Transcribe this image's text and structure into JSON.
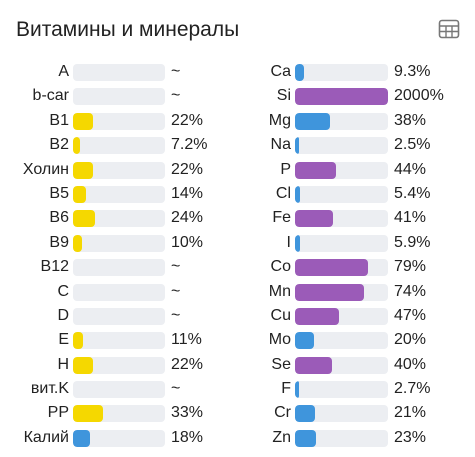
{
  "header": {
    "title": "Витамины и минералы",
    "table_icon": "table-grid-icon"
  },
  "colors": {
    "vitamin": "#f5d800",
    "mineral_low": "#3f95dc",
    "mineral_high": "#9b5bb8",
    "track": "#eceef2"
  },
  "vitamins": [
    {
      "label": "A",
      "value": "~",
      "percent": 0
    },
    {
      "label": "b-car",
      "value": "~",
      "percent": 0
    },
    {
      "label": "B1",
      "value": "22%",
      "percent": 22
    },
    {
      "label": "B2",
      "value": "7.2%",
      "percent": 7.2
    },
    {
      "label": "Холин",
      "value": "22%",
      "percent": 22
    },
    {
      "label": "B5",
      "value": "14%",
      "percent": 14
    },
    {
      "label": "B6",
      "value": "24%",
      "percent": 24
    },
    {
      "label": "B9",
      "value": "10%",
      "percent": 10
    },
    {
      "label": "B12",
      "value": "~",
      "percent": 0
    },
    {
      "label": "C",
      "value": "~",
      "percent": 0
    },
    {
      "label": "D",
      "value": "~",
      "percent": 0
    },
    {
      "label": "E",
      "value": "11%",
      "percent": 11
    },
    {
      "label": "H",
      "value": "22%",
      "percent": 22
    },
    {
      "label": "вит.K",
      "value": "~",
      "percent": 0
    },
    {
      "label": "PP",
      "value": "33%",
      "percent": 33
    },
    {
      "label": "Калий",
      "value": "18%",
      "percent": 18,
      "color": "#3f95dc"
    }
  ],
  "minerals": [
    {
      "label": "Ca",
      "value": "9.3%",
      "percent": 9.3
    },
    {
      "label": "Si",
      "value": "2000%",
      "percent": 2000
    },
    {
      "label": "Mg",
      "value": "38%",
      "percent": 38
    },
    {
      "label": "Na",
      "value": "2.5%",
      "percent": 2.5
    },
    {
      "label": "P",
      "value": "44%",
      "percent": 44
    },
    {
      "label": "Cl",
      "value": "5.4%",
      "percent": 5.4
    },
    {
      "label": "Fe",
      "value": "41%",
      "percent": 41
    },
    {
      "label": "I",
      "value": "5.9%",
      "percent": 5.9
    },
    {
      "label": "Co",
      "value": "79%",
      "percent": 79
    },
    {
      "label": "Mn",
      "value": "74%",
      "percent": 74
    },
    {
      "label": "Cu",
      "value": "47%",
      "percent": 47
    },
    {
      "label": "Mo",
      "value": "20%",
      "percent": 20
    },
    {
      "label": "Se",
      "value": "40%",
      "percent": 40
    },
    {
      "label": "F",
      "value": "2.7%",
      "percent": 2.7
    },
    {
      "label": "Cr",
      "value": "21%",
      "percent": 21
    },
    {
      "label": "Zn",
      "value": "23%",
      "percent": 23
    }
  ]
}
